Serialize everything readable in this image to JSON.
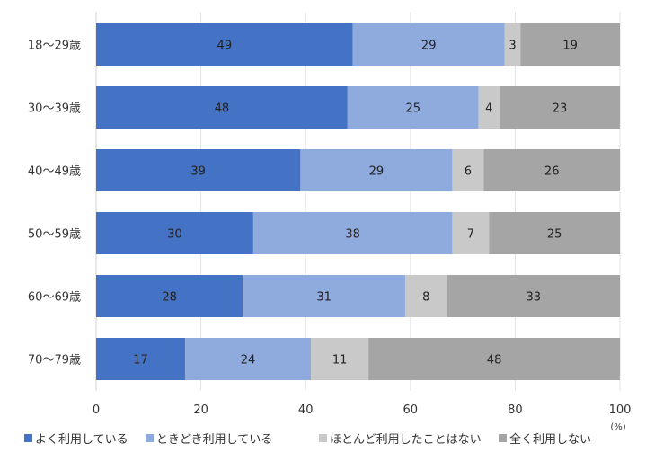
{
  "chart_data": {
    "type": "bar",
    "orientation": "horizontal",
    "stacked": true,
    "categories": [
      "18〜29歳",
      "30〜39歳",
      "40〜49歳",
      "50〜59歳",
      "60〜69歳",
      "70〜79歳"
    ],
    "series": [
      {
        "name": "よく利用している",
        "color": "#4472C4",
        "values": [
          49,
          48,
          39,
          30,
          28,
          17
        ]
      },
      {
        "name": "ときどき利用している",
        "color": "#8FAADC",
        "values": [
          29,
          25,
          29,
          38,
          31,
          24
        ]
      },
      {
        "name": "ほとんど利用したことはない",
        "color": "#C9C9C9",
        "values": [
          3,
          4,
          6,
          7,
          8,
          11
        ]
      },
      {
        "name": "全く利用しない",
        "color": "#A5A5A5",
        "values": [
          19,
          23,
          26,
          25,
          33,
          48
        ]
      }
    ],
    "xlim": [
      0,
      100
    ],
    "xticks": [
      "0",
      "20",
      "40",
      "60",
      "80",
      "100"
    ],
    "xunit": "(%)",
    "grid": true,
    "legend": "bottom"
  }
}
